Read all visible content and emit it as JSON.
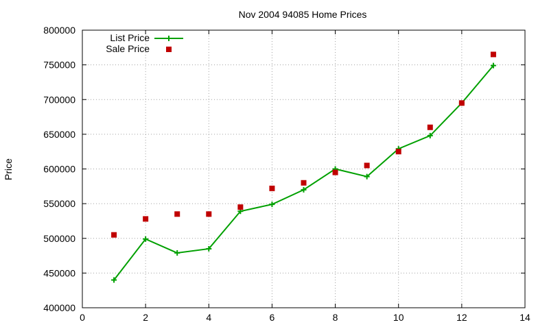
{
  "chart_data": {
    "type": "line",
    "title": "Nov 2004 94085 Home Prices",
    "xlabel": "",
    "ylabel": "Price",
    "xlim": [
      0,
      14
    ],
    "ylim": [
      400000,
      800000
    ],
    "xticks": [
      "0",
      "2",
      "4",
      "6",
      "8",
      "10",
      "12",
      "14"
    ],
    "yticks": [
      "400000",
      "450000",
      "500000",
      "550000",
      "600000",
      "650000",
      "700000",
      "750000",
      "800000"
    ],
    "grid": true,
    "legend_position": "top-left",
    "series": [
      {
        "name": "List Price",
        "style": "line-with-plus-markers",
        "color": "#00a000",
        "x": [
          1,
          2,
          3,
          4,
          5,
          6,
          7,
          8,
          9,
          10,
          11,
          12,
          13
        ],
        "y": [
          440000,
          499000,
          479000,
          485000,
          539000,
          549000,
          570000,
          600000,
          589000,
          629000,
          648000,
          695000,
          749000
        ]
      },
      {
        "name": "Sale Price",
        "style": "square-markers",
        "color": "#c00000",
        "x": [
          1,
          2,
          3,
          4,
          5,
          6,
          7,
          8,
          9,
          10,
          11,
          12,
          13
        ],
        "y": [
          505000,
          528000,
          535000,
          535000,
          545000,
          572000,
          580000,
          595000,
          605000,
          625000,
          660000,
          695000,
          765000
        ]
      }
    ]
  }
}
